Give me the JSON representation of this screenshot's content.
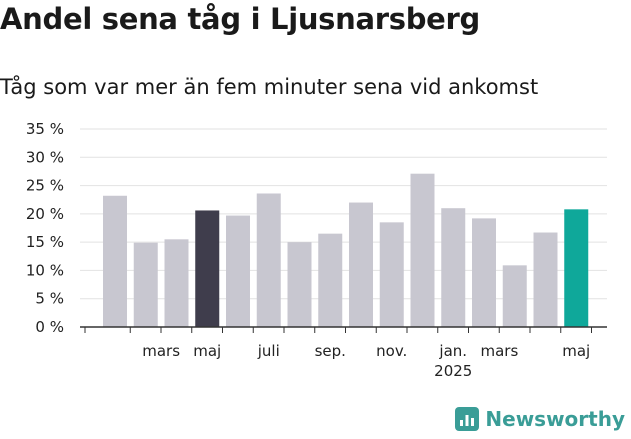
{
  "title": "Andel sena tåg i Ljusnarsberg",
  "subtitle": "Tåg som var mer än fem minuter sena vid ankomst",
  "brand": {
    "name": "Newsworthy",
    "color": "#3a9d97"
  },
  "chart_data": {
    "type": "bar",
    "y_ticks": [
      "35 %",
      "30 %",
      "25 %",
      "20 %",
      "15 %",
      "10 %",
      "5 %",
      "0 %"
    ],
    "ylim": [
      0,
      35
    ],
    "grid": true,
    "values": [
      23.2,
      14.9,
      15.5,
      20.6,
      19.7,
      23.6,
      15.0,
      16.5,
      22.0,
      18.5,
      27.1,
      21.0,
      19.2,
      10.9,
      16.7,
      20.8
    ],
    "bar_colors": [
      "#c8c7d0",
      "#c8c7d0",
      "#c8c7d0",
      "#3f3d4c",
      "#c8c7d0",
      "#c8c7d0",
      "#c8c7d0",
      "#c8c7d0",
      "#c8c7d0",
      "#c8c7d0",
      "#c8c7d0",
      "#c8c7d0",
      "#c8c7d0",
      "#c8c7d0",
      "#c8c7d0",
      "#0fa89a"
    ],
    "x_labels": [
      {
        "bar": 1.5,
        "text": "mars"
      },
      {
        "bar": 3,
        "text": "maj"
      },
      {
        "bar": 5,
        "text": "juli"
      },
      {
        "bar": 7,
        "text": "sep."
      },
      {
        "bar": 9,
        "text": "nov."
      },
      {
        "bar": 11,
        "text": "jan."
      },
      {
        "bar": 11,
        "text": "2025",
        "second_line": true
      },
      {
        "bar": 12.5,
        "text": "mars"
      },
      {
        "bar": 15,
        "text": "maj"
      }
    ]
  }
}
